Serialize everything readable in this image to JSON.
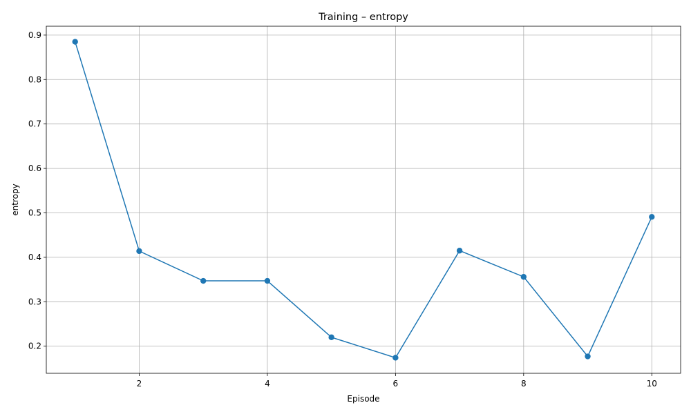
{
  "chart_data": {
    "type": "line",
    "title": "Training – entropy",
    "xlabel": "Episode",
    "ylabel": "entropy",
    "x": [
      1,
      2,
      3,
      4,
      5,
      6,
      7,
      8,
      9,
      10
    ],
    "series": [
      {
        "values": [
          0.885,
          0.414,
          0.347,
          0.347,
          0.22,
          0.174,
          0.415,
          0.356,
          0.177,
          0.491
        ],
        "color": "#1f77b4",
        "marker": "circle"
      }
    ],
    "xlim": [
      0.55,
      10.45
    ],
    "ylim": [
      0.139,
      0.92
    ],
    "xticks": [
      2,
      4,
      6,
      8,
      10
    ],
    "yticks": [
      0.2,
      0.3,
      0.4,
      0.5,
      0.6,
      0.7,
      0.8,
      0.9
    ],
    "xtick_labels": [
      "2",
      "4",
      "6",
      "8",
      "10"
    ],
    "ytick_labels": [
      "0.2",
      "0.3",
      "0.4",
      "0.5",
      "0.6",
      "0.7",
      "0.8",
      "0.9"
    ],
    "grid": true
  }
}
